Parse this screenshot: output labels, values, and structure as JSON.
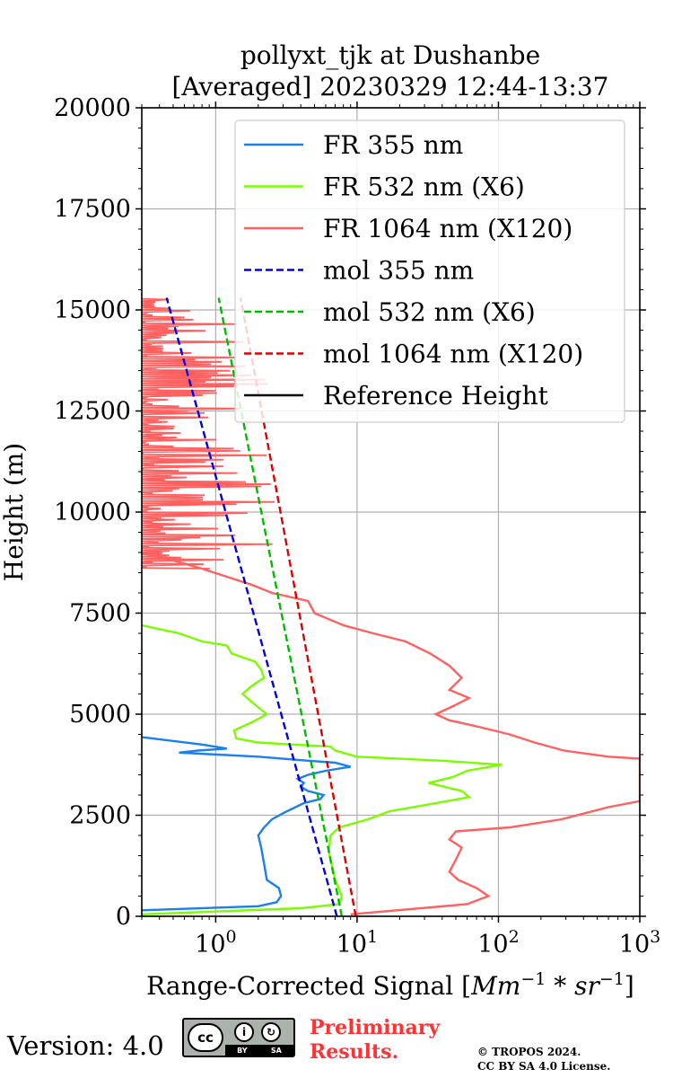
{
  "chart_data": {
    "type": "line",
    "title": "pollyxt_tjk at Dushanbe",
    "subtitle": "[Averaged] 20230329 12:44-13:37",
    "xlabel": "Range-Corrected Signal [",
    "xlabel_math": "Mm",
    "xlabel_sup1": "−1",
    "xlabel_mid": " * sr",
    "xlabel_sup2": "−1",
    "xlabel_end": "]",
    "ylabel": "Height (m)",
    "xscale": "log",
    "xlim": [
      0.3,
      1000
    ],
    "ylim": [
      0,
      20000
    ],
    "x_tick_labels": [
      {
        "value": 1,
        "base": "10",
        "exp": "0"
      },
      {
        "value": 10,
        "base": "10",
        "exp": "1"
      },
      {
        "value": 100,
        "base": "10",
        "exp": "2"
      },
      {
        "value": 1000,
        "base": "10",
        "exp": "3"
      }
    ],
    "y_tick_labels": [
      "0",
      "2500",
      "5000",
      "7500",
      "10000",
      "12500",
      "15000",
      "17500",
      "20000"
    ],
    "y_ticks": [
      0,
      2500,
      5000,
      7500,
      10000,
      12500,
      15000,
      17500,
      20000
    ],
    "grid": true,
    "legend_position": "top-right",
    "series": [
      {
        "name": "FR 355 nm",
        "color": "#1a7fef",
        "style": "solid",
        "points": [
          [
            0.3,
            150
          ],
          [
            2.0,
            250
          ],
          [
            2.7,
            350
          ],
          [
            2.9,
            500
          ],
          [
            2.8,
            700
          ],
          [
            2.3,
            900
          ],
          [
            2.2,
            1300
          ],
          [
            2.1,
            1700
          ],
          [
            2.0,
            2000
          ],
          [
            2.2,
            2200
          ],
          [
            2.5,
            2400
          ],
          [
            3.2,
            2600
          ],
          [
            4.2,
            2800
          ],
          [
            5.5,
            2900
          ],
          [
            5.8,
            3000
          ],
          [
            4.5,
            3100
          ],
          [
            4.0,
            3200
          ],
          [
            4.2,
            3300
          ],
          [
            3.8,
            3400
          ],
          [
            4.5,
            3500
          ],
          [
            6.0,
            3600
          ],
          [
            9.0,
            3700
          ],
          [
            7.0,
            3800
          ],
          [
            4.5,
            3850
          ],
          [
            2.0,
            3950
          ],
          [
            0.55,
            4050
          ],
          [
            0.75,
            4100
          ],
          [
            1.2,
            4150
          ],
          [
            0.8,
            4250
          ],
          [
            0.3,
            4430
          ]
        ]
      },
      {
        "name": "FR 532 nm (X6)",
        "color": "#7cfc00",
        "style": "solid",
        "points": [
          [
            0.3,
            50
          ],
          [
            4.0,
            200
          ],
          [
            7.5,
            300
          ],
          [
            7.8,
            500
          ],
          [
            7.0,
            900
          ],
          [
            6.7,
            1200
          ],
          [
            6.3,
            1600
          ],
          [
            6.5,
            2000
          ],
          [
            7.5,
            2200
          ],
          [
            12,
            2400
          ],
          [
            17,
            2600
          ],
          [
            30,
            2750
          ],
          [
            62,
            2950
          ],
          [
            55,
            3100
          ],
          [
            32,
            3300
          ],
          [
            48,
            3450
          ],
          [
            60,
            3600
          ],
          [
            105,
            3750
          ],
          [
            40,
            3850
          ],
          [
            10,
            3950
          ],
          [
            7,
            4100
          ],
          [
            6.5,
            4200
          ],
          [
            3.5,
            4250
          ],
          [
            2.0,
            4300
          ],
          [
            1.4,
            4400
          ],
          [
            1.35,
            4600
          ],
          [
            1.8,
            4800
          ],
          [
            2.3,
            5000
          ],
          [
            1.8,
            5300
          ],
          [
            1.55,
            5500
          ],
          [
            1.8,
            5700
          ],
          [
            2.2,
            5900
          ],
          [
            2.1,
            6100
          ],
          [
            1.9,
            6300
          ],
          [
            1.3,
            6500
          ],
          [
            1.2,
            6700
          ],
          [
            0.8,
            6800
          ],
          [
            0.55,
            7000
          ],
          [
            0.35,
            7150
          ],
          [
            0.3,
            7200
          ]
        ]
      },
      {
        "name": "FR 1064 nm (X120)",
        "color": "#ff6060",
        "style": "solid",
        "points": [
          [
            9,
            50
          ],
          [
            60,
            300
          ],
          [
            85,
            500
          ],
          [
            70,
            700
          ],
          [
            52,
            900
          ],
          [
            45,
            1100
          ],
          [
            50,
            1400
          ],
          [
            55,
            1700
          ],
          [
            45,
            1900
          ],
          [
            50,
            2100
          ],
          [
            120,
            2200
          ],
          [
            280,
            2400
          ],
          [
            600,
            2700
          ],
          [
            1000,
            2850
          ],
          [
            1000,
            3900
          ],
          [
            600,
            3950
          ],
          [
            290,
            4100
          ],
          [
            180,
            4300
          ],
          [
            120,
            4500
          ],
          [
            70,
            4700
          ],
          [
            45,
            4850
          ],
          [
            36,
            5000
          ],
          [
            48,
            5200
          ],
          [
            62,
            5400
          ],
          [
            45,
            5600
          ],
          [
            55,
            5900
          ],
          [
            45,
            6200
          ],
          [
            33,
            6500
          ],
          [
            22,
            6800
          ],
          [
            13,
            7000
          ],
          [
            8,
            7200
          ],
          [
            5,
            7500
          ],
          [
            4.5,
            7800
          ],
          [
            2.5,
            8000
          ],
          [
            1.8,
            8200
          ],
          [
            1.2,
            8400
          ],
          [
            0.8,
            8600
          ],
          [
            0.5,
            8800
          ],
          [
            0.3,
            9000
          ]
        ]
      },
      {
        "name": "mol 355 nm",
        "color": "#0000dd",
        "style": "dashed",
        "points": [
          [
            7.2,
            0
          ],
          [
            0.45,
            15300
          ]
        ]
      },
      {
        "name": "mol 532 nm (X6)",
        "color": "#00bb00",
        "style": "dashed",
        "points": [
          [
            7.8,
            0
          ],
          [
            1.05,
            15300
          ]
        ]
      },
      {
        "name": "mol 1064 nm (X120)",
        "color": "#dd0000",
        "style": "dashed",
        "points": [
          [
            9.8,
            0
          ],
          [
            1.5,
            15300
          ]
        ]
      },
      {
        "name": "Reference Height",
        "color": "#000000",
        "style": "solid",
        "points": []
      }
    ]
  },
  "footer": {
    "version": "Version: 4.0",
    "cc_label": "cc",
    "cc_by": "BY",
    "cc_sa": "SA",
    "preliminary_line1": "Preliminary",
    "preliminary_line2": "Results.",
    "copyright_line1": "© TROPOS 2024.",
    "copyright_line2": "CC BY SA 4.0 License."
  }
}
